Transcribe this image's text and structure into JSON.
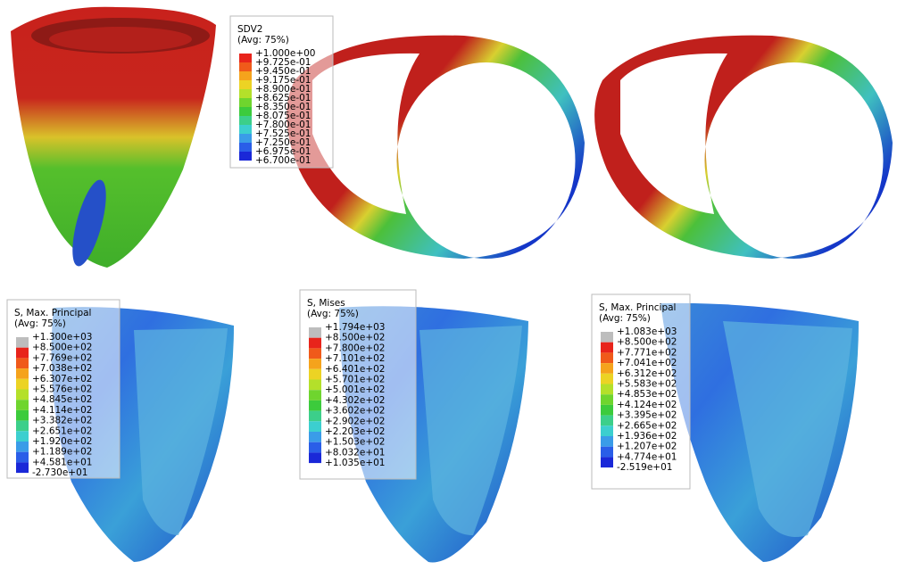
{
  "legends": [
    {
      "title": "SDV2",
      "average": "(Avg: 75%)",
      "labels": [
        "+1.000e+00",
        "+9.725e-01",
        "+9.450e-01",
        "+9.175e-01",
        "+8.900e-01",
        "+8.625e-01",
        "+8.350e-01",
        "+8.075e-01",
        "+7.800e-01",
        "+7.525e-01",
        "+7.250e-01",
        "+6.975e-01",
        "+6.700e-01"
      ]
    },
    {
      "title": "S, Max. Principal",
      "average": "(Avg: 75%)",
      "labels": [
        "+1.300e+03",
        "+8.500e+02",
        "+7.769e+02",
        "+7.038e+02",
        "+6.307e+02",
        "+5.576e+02",
        "+4.845e+02",
        "+4.114e+02",
        "+3.382e+02",
        "+2.651e+02",
        "+1.920e+02",
        "+1.189e+02",
        "+4.581e+01",
        "-2.730e+01"
      ]
    },
    {
      "title": "S, Mises",
      "average": "(Avg: 75%)",
      "labels": [
        "+1.794e+03",
        "+8.500e+02",
        "+7.800e+02",
        "+7.101e+02",
        "+6.401e+02",
        "+5.701e+02",
        "+5.001e+02",
        "+4.302e+02",
        "+3.602e+02",
        "+2.902e+02",
        "+2.203e+02",
        "+1.503e+02",
        "+8.032e+01",
        "+1.035e+01"
      ]
    },
    {
      "title": "S, Max. Principal",
      "average": "(Avg: 75%)",
      "labels": [
        "+1.083e+03",
        "+8.500e+02",
        "+7.771e+02",
        "+7.041e+02",
        "+6.312e+02",
        "+5.583e+02",
        "+4.853e+02",
        "+4.124e+02",
        "+3.395e+02",
        "+2.665e+02",
        "+1.936e+02",
        "+1.207e+02",
        "+4.774e+01",
        "-2.519e+01"
      ]
    }
  ]
}
